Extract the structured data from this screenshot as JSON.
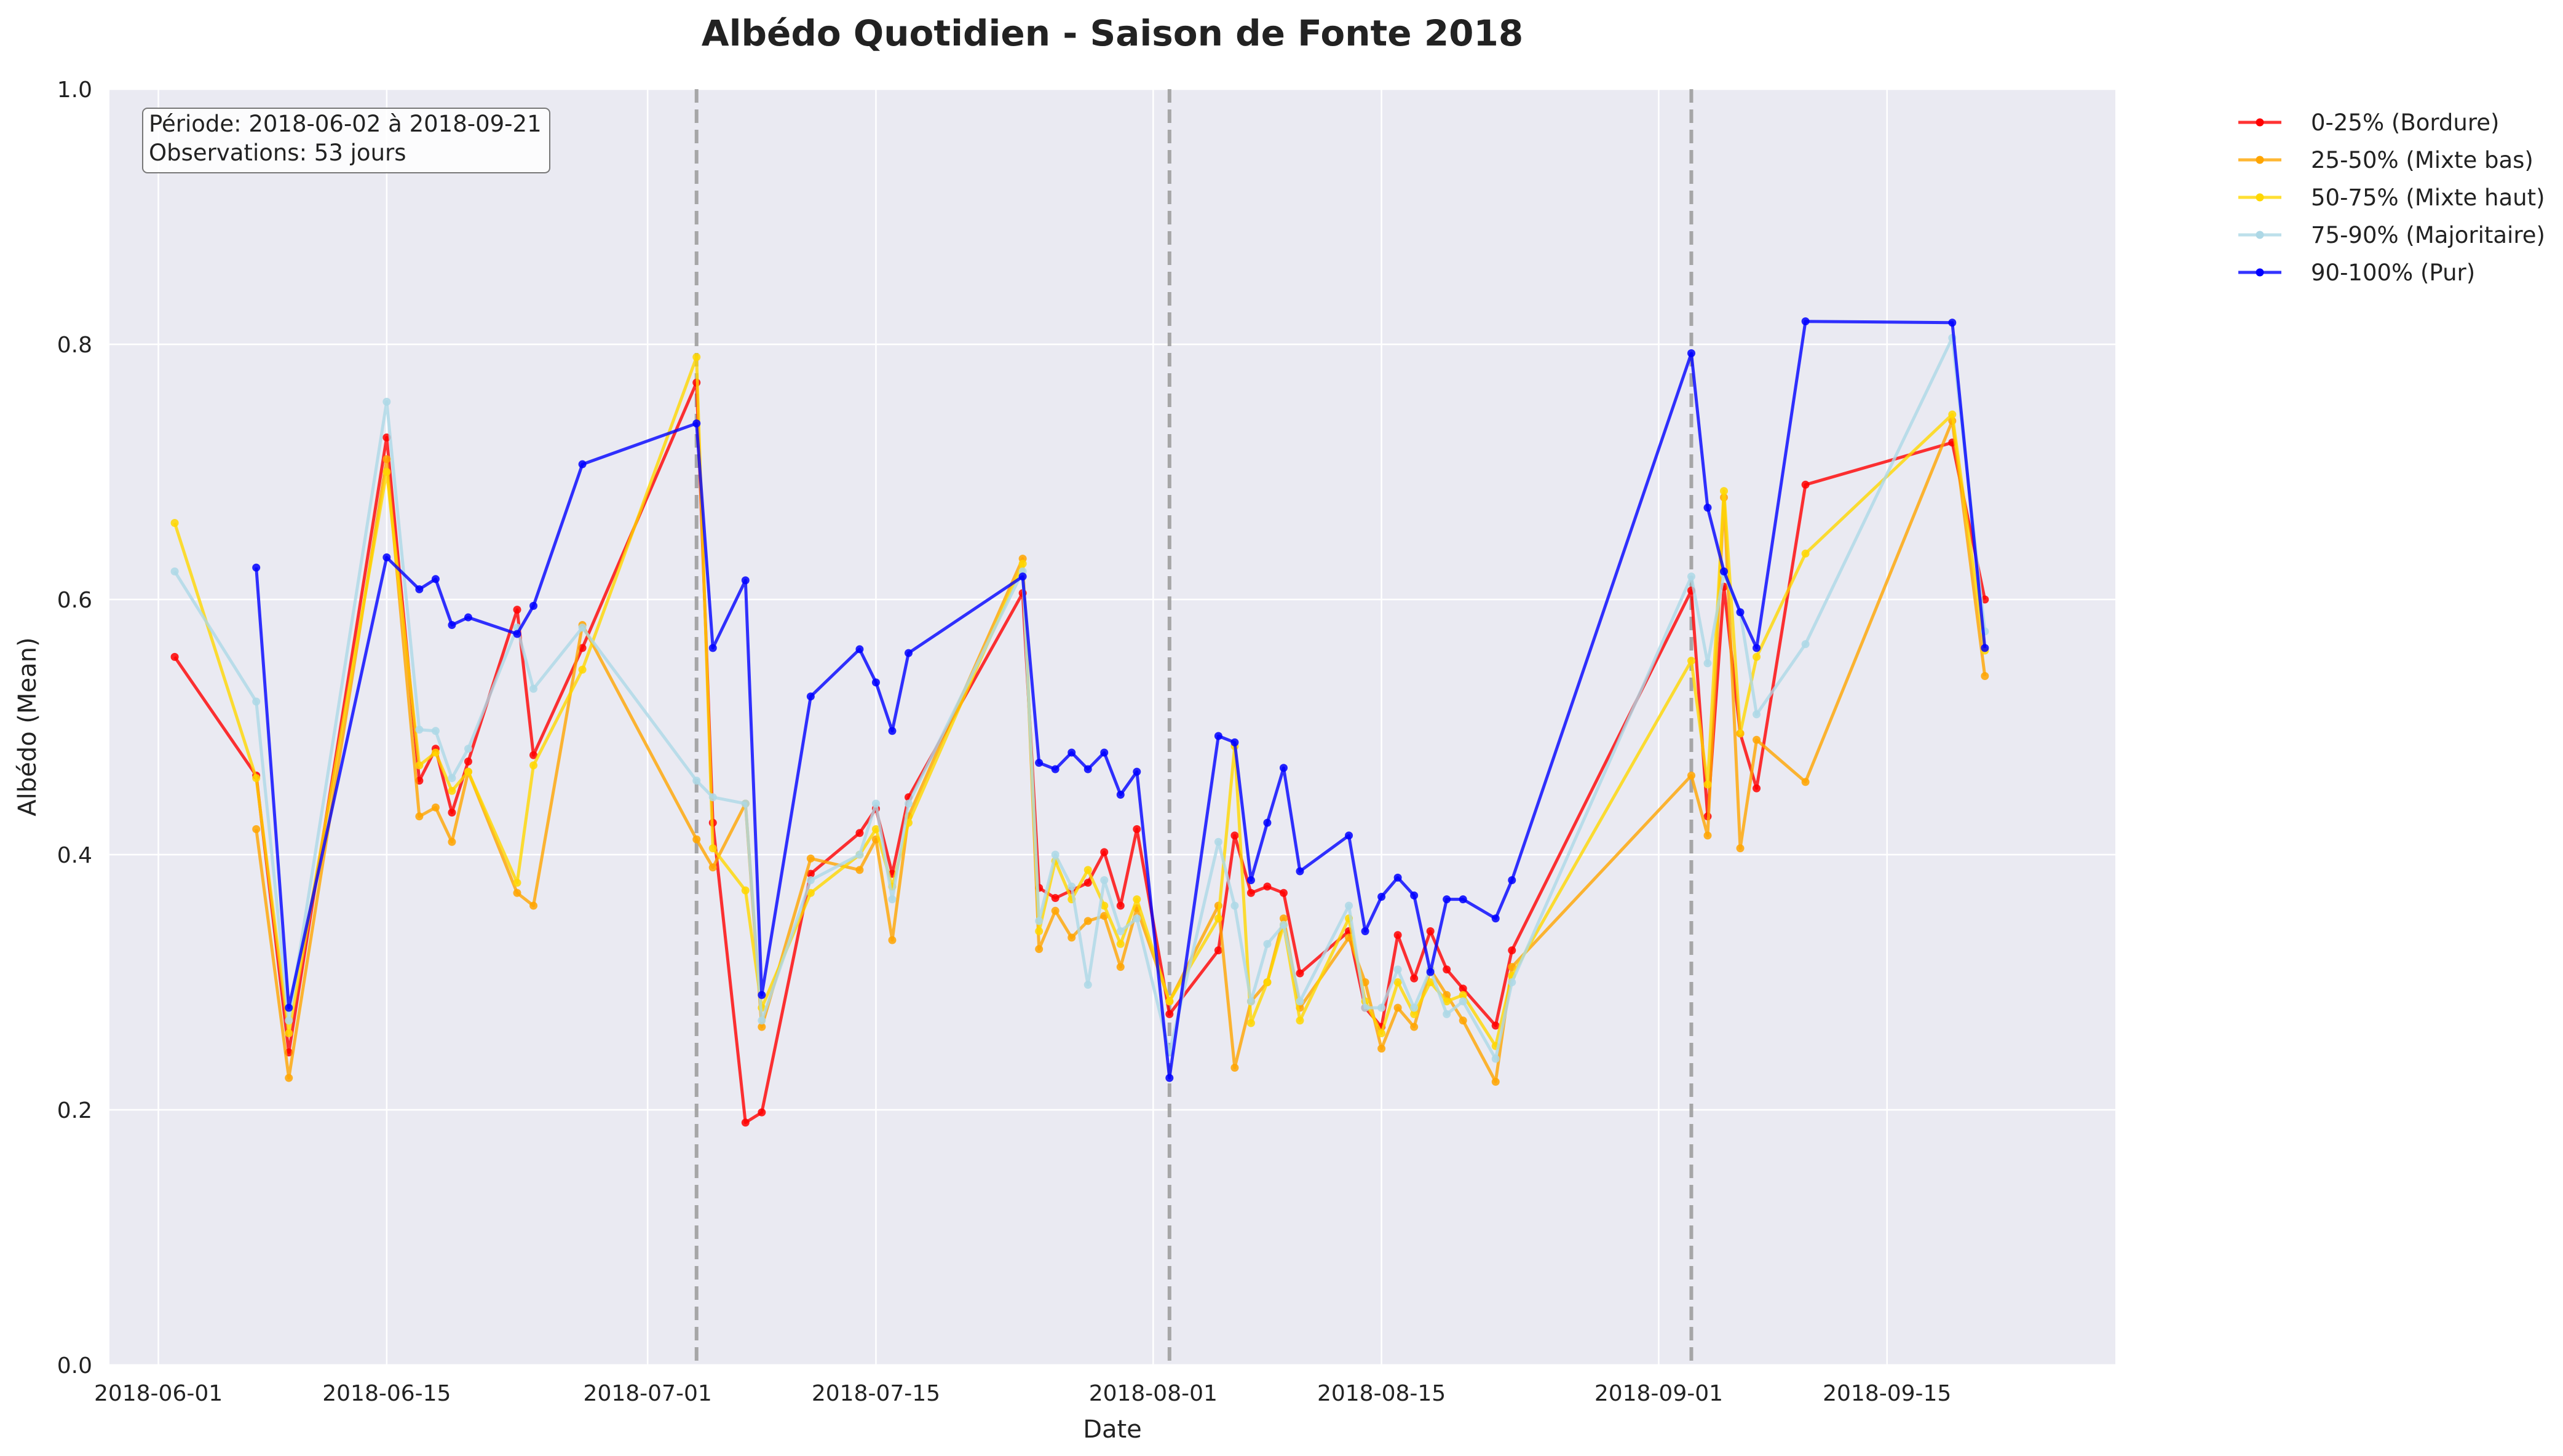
{
  "chart_data": {
    "type": "line",
    "title": "Albédo Quotidien - Saison de Fonte 2018",
    "xlabel": "Date",
    "ylabel": "Albédo (Mean)",
    "ylim": [
      0,
      1
    ],
    "xlim": [
      "2018-05-29",
      "2018-09-29"
    ],
    "x_ticks": [
      "2018-06-01",
      "2018-06-15",
      "2018-07-01",
      "2018-07-15",
      "2018-08-01",
      "2018-08-15",
      "2018-09-01",
      "2018-09-15"
    ],
    "y_ticks": [
      0.0,
      0.2,
      0.4,
      0.6,
      0.8,
      1.0
    ],
    "y_tick_labels": [
      "0.0",
      "0.2",
      "0.4",
      "0.6",
      "0.8",
      "1.0"
    ],
    "grid": true,
    "legend_placement": "outside top-right",
    "vlines": [
      "2018-07-04",
      "2018-08-02",
      "2018-09-03"
    ],
    "info_box": {
      "line1": "Période: 2018-06-02 à 2018-09-21",
      "line2": "Observations: 53 jours"
    },
    "series": [
      {
        "name": "0-25% (Bordure)",
        "color": "#ff0000",
        "points": [
          [
            "2018-06-02",
            0.555
          ],
          [
            "2018-06-07",
            0.462
          ],
          [
            "2018-06-09",
            0.245
          ],
          [
            "2018-06-15",
            0.727
          ],
          [
            "2018-06-17",
            0.458
          ],
          [
            "2018-06-18",
            0.483
          ],
          [
            "2018-06-19",
            0.433
          ],
          [
            "2018-06-20",
            0.473
          ],
          [
            "2018-06-23",
            0.592
          ],
          [
            "2018-06-24",
            0.478
          ],
          [
            "2018-06-27",
            0.562
          ],
          [
            "2018-07-04",
            0.77
          ],
          [
            "2018-07-05",
            0.425
          ],
          [
            "2018-07-07",
            0.19
          ],
          [
            "2018-07-08",
            0.198
          ],
          [
            "2018-07-11",
            0.385
          ],
          [
            "2018-07-14",
            0.417
          ],
          [
            "2018-07-15",
            0.436
          ],
          [
            "2018-07-16",
            0.385
          ],
          [
            "2018-07-17",
            0.445
          ],
          [
            "2018-07-24",
            0.605
          ],
          [
            "2018-07-25",
            0.374
          ],
          [
            "2018-07-26",
            0.366
          ],
          [
            "2018-07-27",
            0.372
          ],
          [
            "2018-07-28",
            0.378
          ],
          [
            "2018-07-29",
            0.402
          ],
          [
            "2018-07-30",
            0.36
          ],
          [
            "2018-07-31",
            0.42
          ],
          [
            "2018-08-02",
            0.275
          ],
          [
            "2018-08-05",
            0.325
          ],
          [
            "2018-08-06",
            0.415
          ],
          [
            "2018-08-07",
            0.37
          ],
          [
            "2018-08-08",
            0.375
          ],
          [
            "2018-08-09",
            0.37
          ],
          [
            "2018-08-10",
            0.307
          ],
          [
            "2018-08-13",
            0.34
          ],
          [
            "2018-08-14",
            0.28
          ],
          [
            "2018-08-15",
            0.265
          ],
          [
            "2018-08-16",
            0.337
          ],
          [
            "2018-08-17",
            0.303
          ],
          [
            "2018-08-18",
            0.34
          ],
          [
            "2018-08-19",
            0.31
          ],
          [
            "2018-08-20",
            0.295
          ],
          [
            "2018-08-22",
            0.266
          ],
          [
            "2018-08-23",
            0.325
          ],
          [
            "2018-09-03",
            0.607
          ],
          [
            "2018-09-04",
            0.43
          ],
          [
            "2018-09-05",
            0.61
          ],
          [
            "2018-09-06",
            0.495
          ],
          [
            "2018-09-07",
            0.452
          ],
          [
            "2018-09-10",
            0.69
          ],
          [
            "2018-09-19",
            0.723
          ],
          [
            "2018-09-21",
            0.6
          ]
        ]
      },
      {
        "name": "25-50% (Mixte bas)",
        "color": "#ffa500",
        "points": [
          [
            "2018-06-07",
            0.42
          ],
          [
            "2018-06-09",
            0.225
          ],
          [
            "2018-06-15",
            0.71
          ],
          [
            "2018-06-17",
            0.43
          ],
          [
            "2018-06-18",
            0.437
          ],
          [
            "2018-06-19",
            0.41
          ],
          [
            "2018-06-20",
            0.465
          ],
          [
            "2018-06-23",
            0.37
          ],
          [
            "2018-06-24",
            0.36
          ],
          [
            "2018-06-27",
            0.58
          ],
          [
            "2018-07-04",
            0.412
          ],
          [
            "2018-07-05",
            0.39
          ],
          [
            "2018-07-07",
            0.44
          ],
          [
            "2018-07-08",
            0.265
          ],
          [
            "2018-07-11",
            0.397
          ],
          [
            "2018-07-14",
            0.388
          ],
          [
            "2018-07-15",
            0.412
          ],
          [
            "2018-07-16",
            0.333
          ],
          [
            "2018-07-17",
            0.43
          ],
          [
            "2018-07-24",
            0.632
          ],
          [
            "2018-07-25",
            0.326
          ],
          [
            "2018-07-26",
            0.356
          ],
          [
            "2018-07-27",
            0.335
          ],
          [
            "2018-07-28",
            0.348
          ],
          [
            "2018-07-29",
            0.352
          ],
          [
            "2018-07-30",
            0.312
          ],
          [
            "2018-07-31",
            0.358
          ],
          [
            "2018-08-02",
            0.285
          ],
          [
            "2018-08-05",
            0.36
          ],
          [
            "2018-08-06",
            0.233
          ],
          [
            "2018-08-07",
            0.285
          ],
          [
            "2018-08-08",
            0.3
          ],
          [
            "2018-08-09",
            0.35
          ],
          [
            "2018-08-10",
            0.28
          ],
          [
            "2018-08-13",
            0.335
          ],
          [
            "2018-08-14",
            0.3
          ],
          [
            "2018-08-15",
            0.248
          ],
          [
            "2018-08-16",
            0.28
          ],
          [
            "2018-08-17",
            0.265
          ],
          [
            "2018-08-18",
            0.31
          ],
          [
            "2018-08-19",
            0.29
          ],
          [
            "2018-08-20",
            0.27
          ],
          [
            "2018-08-22",
            0.222
          ],
          [
            "2018-08-23",
            0.312
          ],
          [
            "2018-09-03",
            0.462
          ],
          [
            "2018-09-04",
            0.415
          ],
          [
            "2018-09-05",
            0.68
          ],
          [
            "2018-09-06",
            0.405
          ],
          [
            "2018-09-07",
            0.49
          ],
          [
            "2018-09-10",
            0.457
          ],
          [
            "2018-09-19",
            0.74
          ],
          [
            "2018-09-21",
            0.54
          ]
        ]
      },
      {
        "name": "50-75% (Mixte haut)",
        "color": "#ffd700",
        "points": [
          [
            "2018-06-02",
            0.66
          ],
          [
            "2018-06-07",
            0.46
          ],
          [
            "2018-06-09",
            0.26
          ],
          [
            "2018-06-15",
            0.7
          ],
          [
            "2018-06-17",
            0.47
          ],
          [
            "2018-06-18",
            0.48
          ],
          [
            "2018-06-19",
            0.45
          ],
          [
            "2018-06-20",
            0.465
          ],
          [
            "2018-06-23",
            0.378
          ],
          [
            "2018-06-24",
            0.47
          ],
          [
            "2018-06-27",
            0.545
          ],
          [
            "2018-07-04",
            0.79
          ],
          [
            "2018-07-05",
            0.405
          ],
          [
            "2018-07-07",
            0.372
          ],
          [
            "2018-07-08",
            0.28
          ],
          [
            "2018-07-11",
            0.37
          ],
          [
            "2018-07-14",
            0.4
          ],
          [
            "2018-07-15",
            0.42
          ],
          [
            "2018-07-16",
            0.375
          ],
          [
            "2018-07-17",
            0.425
          ],
          [
            "2018-07-24",
            0.628
          ],
          [
            "2018-07-25",
            0.34
          ],
          [
            "2018-07-26",
            0.395
          ],
          [
            "2018-07-27",
            0.365
          ],
          [
            "2018-07-28",
            0.388
          ],
          [
            "2018-07-29",
            0.36
          ],
          [
            "2018-07-30",
            0.33
          ],
          [
            "2018-07-31",
            0.365
          ],
          [
            "2018-08-02",
            0.285
          ],
          [
            "2018-08-05",
            0.35
          ],
          [
            "2018-08-06",
            0.485
          ],
          [
            "2018-08-07",
            0.268
          ],
          [
            "2018-08-08",
            0.3
          ],
          [
            "2018-08-09",
            0.345
          ],
          [
            "2018-08-10",
            0.27
          ],
          [
            "2018-08-13",
            0.35
          ],
          [
            "2018-08-14",
            0.285
          ],
          [
            "2018-08-15",
            0.26
          ],
          [
            "2018-08-16",
            0.3
          ],
          [
            "2018-08-17",
            0.275
          ],
          [
            "2018-08-18",
            0.3
          ],
          [
            "2018-08-19",
            0.285
          ],
          [
            "2018-08-20",
            0.29
          ],
          [
            "2018-08-22",
            0.25
          ],
          [
            "2018-08-23",
            0.305
          ],
          [
            "2018-09-03",
            0.552
          ],
          [
            "2018-09-04",
            0.455
          ],
          [
            "2018-09-05",
            0.685
          ],
          [
            "2018-09-06",
            0.495
          ],
          [
            "2018-09-07",
            0.555
          ],
          [
            "2018-09-10",
            0.636
          ],
          [
            "2018-09-19",
            0.745
          ],
          [
            "2018-09-21",
            0.56
          ]
        ]
      },
      {
        "name": "75-90% (Majoritaire)",
        "color": "#add8e6",
        "points": [
          [
            "2018-06-02",
            0.622
          ],
          [
            "2018-06-07",
            0.52
          ],
          [
            "2018-06-09",
            0.27
          ],
          [
            "2018-06-15",
            0.755
          ],
          [
            "2018-06-17",
            0.498
          ],
          [
            "2018-06-18",
            0.497
          ],
          [
            "2018-06-19",
            0.46
          ],
          [
            "2018-06-20",
            0.483
          ],
          [
            "2018-06-23",
            0.578
          ],
          [
            "2018-06-24",
            0.53
          ],
          [
            "2018-06-27",
            0.578
          ],
          [
            "2018-07-04",
            0.458
          ],
          [
            "2018-07-05",
            0.445
          ],
          [
            "2018-07-07",
            0.44
          ],
          [
            "2018-07-08",
            0.27
          ],
          [
            "2018-07-11",
            0.38
          ],
          [
            "2018-07-14",
            0.4
          ],
          [
            "2018-07-15",
            0.44
          ],
          [
            "2018-07-16",
            0.365
          ],
          [
            "2018-07-17",
            0.44
          ],
          [
            "2018-07-24",
            0.622
          ],
          [
            "2018-07-25",
            0.348
          ],
          [
            "2018-07-26",
            0.4
          ],
          [
            "2018-07-27",
            0.375
          ],
          [
            "2018-07-28",
            0.298
          ],
          [
            "2018-07-29",
            0.38
          ],
          [
            "2018-07-30",
            0.34
          ],
          [
            "2018-07-31",
            0.35
          ],
          [
            "2018-08-02",
            0.245
          ],
          [
            "2018-08-05",
            0.41
          ],
          [
            "2018-08-06",
            0.36
          ],
          [
            "2018-08-07",
            0.285
          ],
          [
            "2018-08-08",
            0.33
          ],
          [
            "2018-08-09",
            0.345
          ],
          [
            "2018-08-10",
            0.285
          ],
          [
            "2018-08-13",
            0.36
          ],
          [
            "2018-08-14",
            0.28
          ],
          [
            "2018-08-15",
            0.28
          ],
          [
            "2018-08-16",
            0.31
          ],
          [
            "2018-08-17",
            0.28
          ],
          [
            "2018-08-18",
            0.31
          ],
          [
            "2018-08-19",
            0.275
          ],
          [
            "2018-08-20",
            0.285
          ],
          [
            "2018-08-22",
            0.24
          ],
          [
            "2018-08-23",
            0.3
          ],
          [
            "2018-09-03",
            0.618
          ],
          [
            "2018-09-04",
            0.55
          ],
          [
            "2018-09-05",
            0.62
          ],
          [
            "2018-09-06",
            0.59
          ],
          [
            "2018-09-07",
            0.51
          ],
          [
            "2018-09-10",
            0.565
          ],
          [
            "2018-09-19",
            0.805
          ],
          [
            "2018-09-21",
            0.575
          ]
        ]
      },
      {
        "name": "90-100% (Pur)",
        "color": "#0000ff",
        "points": [
          [
            "2018-06-07",
            0.625
          ],
          [
            "2018-06-09",
            0.28
          ],
          [
            "2018-06-15",
            0.633
          ],
          [
            "2018-06-17",
            0.608
          ],
          [
            "2018-06-18",
            0.616
          ],
          [
            "2018-06-19",
            0.58
          ],
          [
            "2018-06-20",
            0.586
          ],
          [
            "2018-06-23",
            0.573
          ],
          [
            "2018-06-24",
            0.595
          ],
          [
            "2018-06-27",
            0.706
          ],
          [
            "2018-07-04",
            0.738
          ],
          [
            "2018-07-05",
            0.562
          ],
          [
            "2018-07-07",
            0.615
          ],
          [
            "2018-07-08",
            0.29
          ],
          [
            "2018-07-11",
            0.524
          ],
          [
            "2018-07-14",
            0.561
          ],
          [
            "2018-07-15",
            0.535
          ],
          [
            "2018-07-16",
            0.497
          ],
          [
            "2018-07-17",
            0.558
          ],
          [
            "2018-07-24",
            0.618
          ],
          [
            "2018-07-25",
            0.472
          ],
          [
            "2018-07-26",
            0.467
          ],
          [
            "2018-07-27",
            0.48
          ],
          [
            "2018-07-28",
            0.467
          ],
          [
            "2018-07-29",
            0.48
          ],
          [
            "2018-07-30",
            0.447
          ],
          [
            "2018-07-31",
            0.465
          ],
          [
            "2018-08-02",
            0.225
          ],
          [
            "2018-08-05",
            0.493
          ],
          [
            "2018-08-06",
            0.488
          ],
          [
            "2018-08-07",
            0.38
          ],
          [
            "2018-08-08",
            0.425
          ],
          [
            "2018-08-09",
            0.468
          ],
          [
            "2018-08-10",
            0.387
          ],
          [
            "2018-08-13",
            0.415
          ],
          [
            "2018-08-14",
            0.34
          ],
          [
            "2018-08-15",
            0.367
          ],
          [
            "2018-08-16",
            0.382
          ],
          [
            "2018-08-17",
            0.368
          ],
          [
            "2018-08-18",
            0.308
          ],
          [
            "2018-08-19",
            0.365
          ],
          [
            "2018-08-20",
            0.365
          ],
          [
            "2018-08-22",
            0.35
          ],
          [
            "2018-08-23",
            0.38
          ],
          [
            "2018-09-03",
            0.793
          ],
          [
            "2018-09-04",
            0.672
          ],
          [
            "2018-09-05",
            0.622
          ],
          [
            "2018-09-06",
            0.59
          ],
          [
            "2018-09-07",
            0.562
          ],
          [
            "2018-09-10",
            0.818
          ],
          [
            "2018-09-19",
            0.817
          ],
          [
            "2018-09-21",
            0.562
          ]
        ]
      }
    ]
  }
}
